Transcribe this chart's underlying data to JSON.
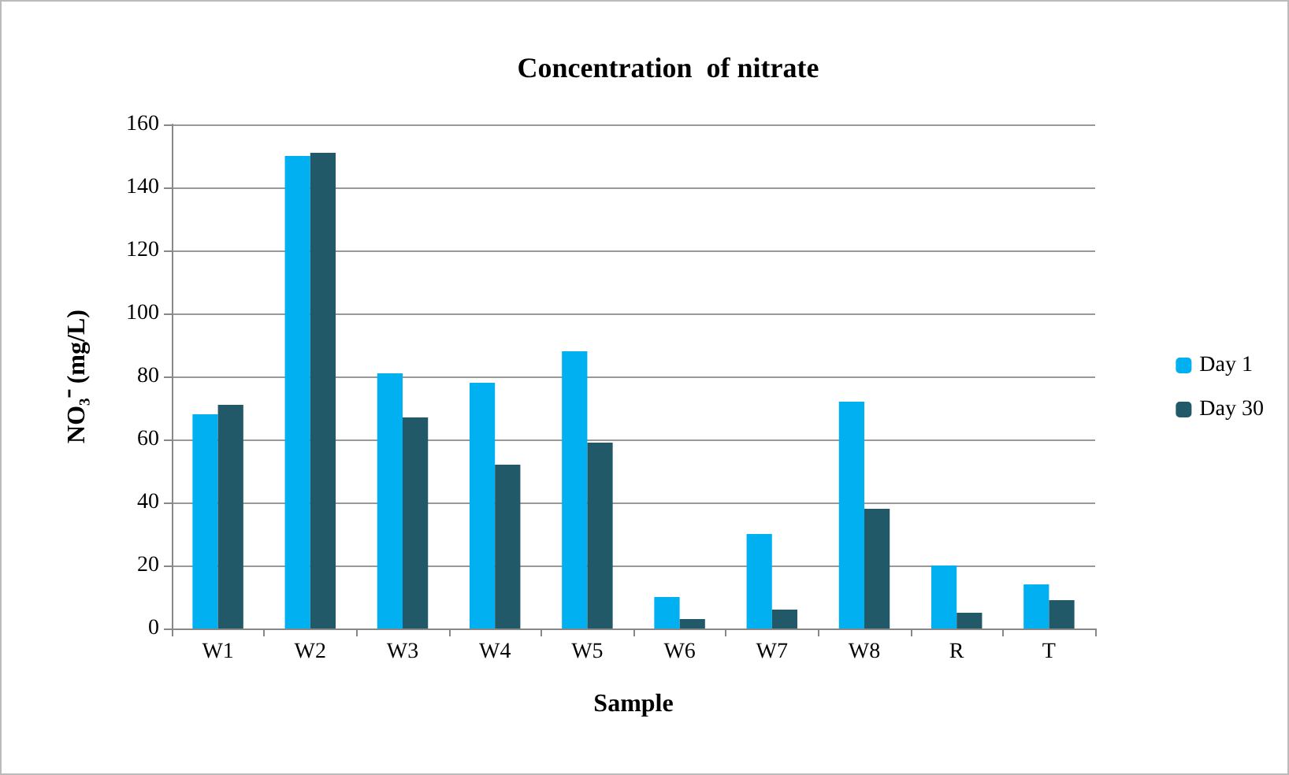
{
  "chart_data": {
    "type": "bar",
    "title": "Concentration  of nitrate",
    "xlabel": "Sample",
    "ylabel": "NO₃⁻ (mg/L)",
    "categories": [
      "W1",
      "W2",
      "W3",
      "W4",
      "W5",
      "W6",
      "W7",
      "W8",
      "R",
      "T"
    ],
    "series": [
      {
        "name": "Day 1",
        "color": "#00b0f0",
        "values": [
          68,
          150,
          81,
          78,
          88,
          10,
          30,
          72,
          20,
          14
        ]
      },
      {
        "name": "Day 30",
        "color": "#215968",
        "values": [
          71,
          151,
          67,
          52,
          59,
          3,
          6,
          38,
          5,
          9
        ]
      }
    ],
    "ylim": [
      0,
      160
    ],
    "yticks": [
      0,
      20,
      40,
      60,
      80,
      100,
      120,
      140,
      160
    ],
    "grid": "y",
    "legend": "right"
  }
}
